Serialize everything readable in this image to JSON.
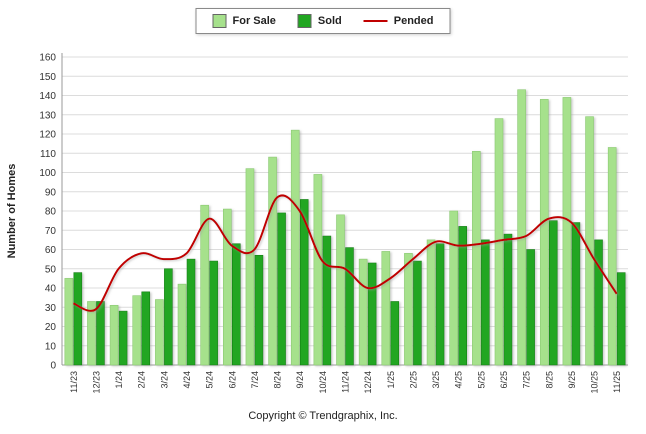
{
  "legend": {
    "for_sale_label": "For Sale",
    "sold_label": "Sold",
    "pended_label": "Pended"
  },
  "ylabel": "Number of Homes",
  "footer": "Copyright © Trendgraphix, Inc.",
  "colors": {
    "for_sale": "#a6e18c",
    "for_sale_border": "#8cc973",
    "sold": "#21a621",
    "sold_border": "#168016",
    "pended": "#c00000",
    "grid": "#dcdcdc",
    "axis": "#999999"
  },
  "chart_data": {
    "type": "bar",
    "title": "",
    "xlabel": "",
    "ylabel": "Number of Homes",
    "ylim": [
      0,
      160
    ],
    "ytick_step": 10,
    "grid": "horizontal",
    "legend_position": "top-center",
    "categories": [
      "11/23",
      "12/23",
      "1/24",
      "2/24",
      "3/24",
      "4/24",
      "5/24",
      "6/24",
      "7/24",
      "8/24",
      "9/24",
      "10/24",
      "11/24",
      "12/24",
      "1/25",
      "2/25",
      "3/25",
      "4/25",
      "5/25",
      "6/25",
      "7/25",
      "8/25",
      "9/25",
      "10/25",
      "11/25"
    ],
    "series": [
      {
        "name": "For Sale",
        "type": "bar",
        "color": "#a6e18c",
        "values": [
          45,
          33,
          31,
          36,
          34,
          42,
          83,
          81,
          102,
          108,
          122,
          99,
          78,
          55,
          59,
          58,
          65,
          80,
          111,
          128,
          143,
          138,
          139,
          129,
          113
        ]
      },
      {
        "name": "Sold",
        "type": "bar",
        "color": "#21a621",
        "values": [
          48,
          33,
          28,
          38,
          50,
          55,
          54,
          63,
          57,
          79,
          86,
          67,
          61,
          53,
          33,
          54,
          63,
          72,
          65,
          68,
          60,
          75,
          74,
          65,
          48
        ]
      },
      {
        "name": "Pended",
        "type": "line",
        "color": "#c00000",
        "values": [
          32,
          29,
          50,
          58,
          55,
          58,
          76,
          62,
          60,
          87,
          80,
          54,
          50,
          40,
          45,
          55,
          64,
          62,
          63,
          65,
          67,
          76,
          74,
          55,
          37
        ]
      }
    ]
  }
}
